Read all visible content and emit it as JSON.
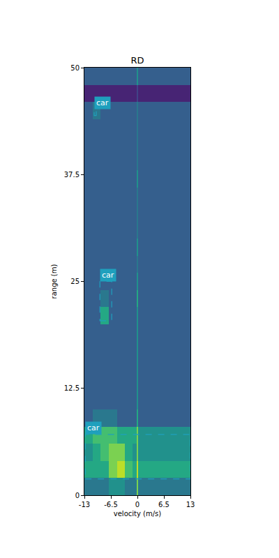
{
  "chart_data": {
    "type": "heatmap",
    "title": "RD",
    "x_label": "velocity (m/s)",
    "y_label": "range (m)",
    "xlim": [
      -13,
      13
    ],
    "ylim": [
      0,
      50
    ],
    "xticks": [
      -13,
      -6.5,
      0,
      6.5,
      13
    ],
    "yticks": [
      0,
      12.5,
      25,
      37.5,
      50
    ],
    "color": "Viridis",
    "zlim": [
      0,
      10
    ],
    "x": [
      -12,
      -10,
      -8,
      -6,
      -4,
      -2,
      -0.5,
      0,
      0.5,
      2,
      4,
      6,
      8,
      10,
      12
    ],
    "y": [
      1,
      3,
      5,
      7,
      9,
      11,
      13,
      15,
      17,
      19,
      21,
      23,
      25,
      27,
      29,
      31,
      33,
      35,
      37,
      39,
      41,
      43,
      45,
      47,
      49
    ],
    "z": [
      [
        4,
        4,
        4,
        5,
        5,
        4,
        4,
        8,
        4,
        4,
        4,
        4,
        4,
        4,
        4
      ],
      [
        6,
        6,
        6,
        8,
        9,
        7,
        6,
        9,
        6,
        6,
        6,
        6,
        6,
        6,
        6
      ],
      [
        5,
        6,
        7,
        8,
        8,
        6,
        5,
        8,
        5,
        5,
        5,
        5,
        5,
        5,
        5
      ],
      [
        6,
        7,
        7,
        7,
        6,
        6,
        6,
        8,
        5,
        5,
        5,
        5,
        5,
        5,
        5
      ],
      [
        3,
        4,
        4,
        4,
        3,
        3,
        3,
        6,
        3,
        3,
        3,
        3,
        3,
        3,
        3
      ],
      [
        3,
        3,
        3,
        3,
        3,
        3,
        3,
        5,
        3,
        3,
        3,
        3,
        3,
        3,
        3
      ],
      [
        3,
        3,
        3,
        3,
        3,
        3,
        3,
        5,
        3,
        3,
        3,
        3,
        3,
        3,
        3
      ],
      [
        3,
        3,
        3,
        3,
        3,
        3,
        3,
        5,
        3,
        3,
        3,
        3,
        3,
        3,
        3
      ],
      [
        3,
        3,
        3,
        3,
        3,
        3,
        3,
        5,
        3,
        3,
        3,
        3,
        3,
        3,
        3
      ],
      [
        3,
        3,
        3,
        3,
        3,
        3,
        3,
        5,
        3,
        3,
        3,
        3,
        3,
        3,
        3
      ],
      [
        3,
        3,
        6,
        3,
        3,
        3,
        3,
        5,
        3,
        3,
        3,
        3,
        3,
        3,
        3
      ],
      [
        3,
        3,
        4,
        3,
        3,
        3,
        3,
        6,
        3,
        3,
        3,
        3,
        3,
        3,
        3
      ],
      [
        3,
        3,
        3,
        3,
        3,
        3,
        3,
        5,
        3,
        3,
        3,
        3,
        3,
        3,
        3
      ],
      [
        3,
        3,
        3,
        3,
        3,
        3,
        3,
        4,
        3,
        3,
        3,
        3,
        3,
        3,
        3
      ],
      [
        3,
        3,
        3,
        3,
        3,
        3,
        3,
        5,
        3,
        3,
        3,
        3,
        3,
        3,
        3
      ],
      [
        3,
        3,
        3,
        3,
        3,
        3,
        3,
        4,
        3,
        3,
        3,
        3,
        3,
        3,
        3
      ],
      [
        3,
        3,
        3,
        3,
        3,
        3,
        3,
        4,
        3,
        3,
        3,
        3,
        3,
        3,
        3
      ],
      [
        3,
        3,
        3,
        3,
        3,
        3,
        3,
        4,
        3,
        3,
        3,
        3,
        3,
        3,
        3
      ],
      [
        3,
        3,
        3,
        3,
        3,
        3,
        3,
        5,
        3,
        3,
        3,
        3,
        3,
        3,
        3
      ],
      [
        3,
        3,
        3,
        3,
        3,
        3,
        3,
        4,
        3,
        3,
        3,
        3,
        3,
        3,
        3
      ],
      [
        3,
        3,
        3,
        3,
        3,
        3,
        3,
        4,
        3,
        3,
        3,
        3,
        3,
        3,
        3
      ],
      [
        3,
        3,
        3,
        3,
        3,
        3,
        3,
        4,
        3,
        3,
        3,
        3,
        3,
        3,
        3
      ],
      [
        3,
        4,
        3,
        3,
        3,
        3,
        3,
        4,
        3,
        3,
        3,
        3,
        3,
        3,
        3
      ],
      [
        1,
        1,
        1,
        1,
        1,
        1,
        1,
        2,
        1,
        1,
        1,
        1,
        1,
        1,
        1
      ],
      [
        3,
        3,
        3,
        3,
        3,
        3,
        3,
        5,
        3,
        3,
        3,
        3,
        3,
        3,
        3
      ]
    ],
    "boxes": [
      {
        "label": "car",
        "x": [
          -10.6,
          -10.1
        ],
        "y": [
          44.4,
          45.1
        ],
        "color": "#1fa0bd"
      },
      {
        "label": "car",
        "x": [
          -9.2,
          -6.3
        ],
        "y": [
          20.4,
          25.0
        ],
        "color": "#1fa0bd"
      },
      {
        "label": "car",
        "x": [
          -12.8,
          13
        ],
        "y": [
          1.9,
          7.1
        ],
        "color": "#1fa0bd"
      }
    ]
  }
}
